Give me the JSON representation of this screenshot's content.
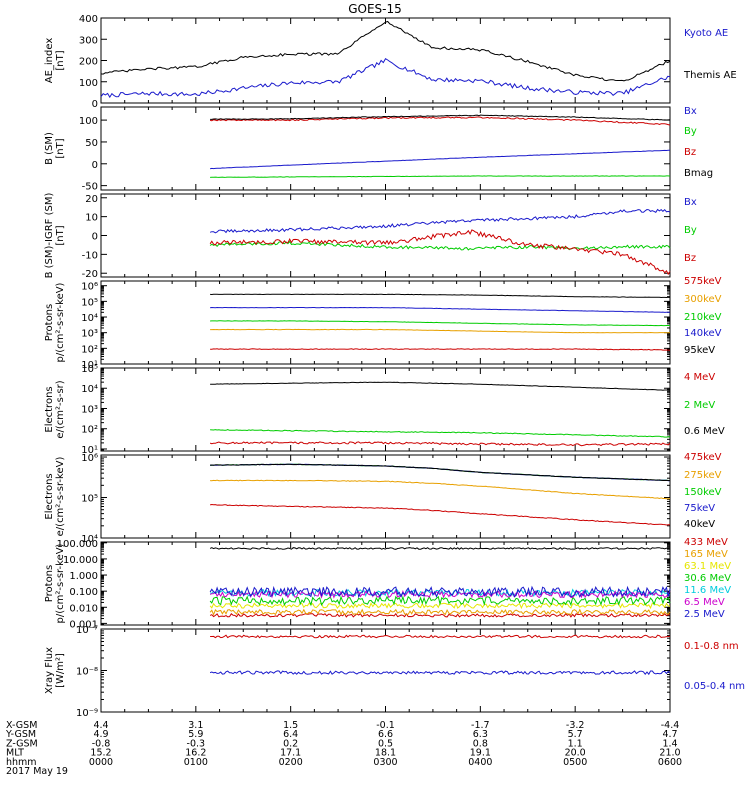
{
  "title": "GOES-15",
  "footer": {
    "rows": [
      {
        "label": "X-GSM",
        "values": [
          "4.4",
          "3.1",
          "1.5",
          "-0.1",
          "-1.7",
          "-3.2",
          "-4.4"
        ]
      },
      {
        "label": "Y-GSM",
        "values": [
          "4.9",
          "5.9",
          "6.4",
          "6.6",
          "6.3",
          "5.7",
          "4.7"
        ]
      },
      {
        "label": "Z-GSM",
        "values": [
          "-0.8",
          "-0.3",
          "0.2",
          "0.5",
          "0.8",
          "1.1",
          "1.4"
        ]
      },
      {
        "label": "MLT",
        "values": [
          "15.2",
          "16.2",
          "17.1",
          "18.1",
          "19.1",
          "20.0",
          "21.0"
        ]
      },
      {
        "label": "hhmm",
        "values": [
          "0000",
          "0100",
          "0200",
          "0300",
          "0400",
          "0500",
          "0600"
        ]
      }
    ],
    "date": "2017 May 19"
  },
  "chart_data": [
    {
      "type": "line",
      "ylabel": "AE_index [nT]",
      "ylim": [
        0,
        400
      ],
      "yscale": "linear",
      "yticks": [
        "0",
        "100",
        "200",
        "300",
        "400"
      ],
      "x_hours": [
        0,
        0.5,
        1,
        1.5,
        2,
        2.5,
        3,
        3.5,
        4,
        4.5,
        5,
        5.5,
        6
      ],
      "series": [
        {
          "name": "Kyoto AE",
          "color": "#1a1acc",
          "values": [
            35,
            45,
            40,
            70,
            95,
            100,
            200,
            110,
            105,
            70,
            50,
            45,
            125
          ],
          "noise": 10
        },
        {
          "name": "Themis AE",
          "color": "#000000",
          "values": [
            140,
            160,
            170,
            215,
            230,
            230,
            385,
            260,
            250,
            195,
            130,
            100,
            200
          ],
          "noise": 6
        }
      ]
    },
    {
      "type": "line",
      "ylabel": "B (SM) [nT]",
      "ylim": [
        -60,
        130
      ],
      "yscale": "linear",
      "yticks": [
        "-50",
        "0",
        "50",
        "100"
      ],
      "x_hours": [
        1.15,
        2,
        3,
        4,
        5,
        6
      ],
      "series": [
        {
          "name": "Bx",
          "color": "#1a1acc",
          "values": [
            -11,
            -3,
            6,
            15,
            23,
            31
          ],
          "noise": 0.4
        },
        {
          "name": "By",
          "color": "#00cc00",
          "values": [
            -31,
            -30,
            -29,
            -28,
            -28,
            -28
          ],
          "noise": 0.4
        },
        {
          "name": "Bz",
          "color": "#cc0000",
          "values": [
            100,
            100,
            105,
            106,
            100,
            90
          ],
          "noise": 1.5
        },
        {
          "name": "Bmag",
          "color": "#000000",
          "values": [
            102,
            103,
            108,
            111,
            107,
            100
          ],
          "noise": 0.8
        }
      ]
    },
    {
      "type": "line",
      "ylabel": "B (SM)-IGRF (SM) [nT]",
      "ylim": [
        -22,
        22
      ],
      "yscale": "linear",
      "yticks": [
        "-20",
        "-10",
        "0",
        "10",
        "20"
      ],
      "x_hours": [
        1.15,
        2,
        3,
        3.9,
        4.5,
        5,
        5.5,
        6
      ],
      "series": [
        {
          "name": "Bx",
          "color": "#1a1acc",
          "values": [
            2,
            3,
            5,
            8,
            9,
            10,
            13,
            13
          ],
          "noise": 0.8
        },
        {
          "name": "By",
          "color": "#00cc00",
          "values": [
            -5,
            -4,
            -6,
            -7,
            -6,
            -7,
            -6,
            -6
          ],
          "noise": 0.8
        },
        {
          "name": "Bz",
          "color": "#cc0000",
          "values": [
            -4,
            -3,
            -4,
            2,
            -5,
            -7,
            -10,
            -20
          ],
          "noise": 1.2
        }
      ]
    },
    {
      "type": "line",
      "ylabel": "Protons p/(cm²-s-sr-keV)",
      "ylim_log": [
        1,
        6.3
      ],
      "yscale": "log",
      "yticks": [
        "10¹",
        "10²",
        "10³",
        "10⁴",
        "10⁵",
        "10⁶"
      ],
      "x_hours": [
        1.15,
        2,
        3,
        4,
        5,
        6
      ],
      "series": [
        {
          "name": "575keV",
          "color": "#cc0000",
          "values": [
            1.95,
            1.95,
            1.95,
            1.95,
            1.95,
            1.9
          ],
          "noise": 0.02
        },
        {
          "name": "300keV",
          "color": "#e8a000",
          "values": [
            3.2,
            3.2,
            3.2,
            3.1,
            3.0,
            3.0
          ],
          "noise": 0.01
        },
        {
          "name": "210keV",
          "color": "#00cc00",
          "values": [
            3.75,
            3.75,
            3.7,
            3.6,
            3.5,
            3.45
          ],
          "noise": 0.01
        },
        {
          "name": "140keV",
          "color": "#1a1acc",
          "values": [
            4.6,
            4.6,
            4.6,
            4.5,
            4.4,
            4.3
          ],
          "noise": 0.01
        },
        {
          "name": "95keV",
          "color": "#000000",
          "values": [
            5.45,
            5.45,
            5.45,
            5.4,
            5.3,
            5.25
          ],
          "noise": 0.01
        }
      ]
    },
    {
      "type": "line",
      "ylabel": "Electrons e/(cm²-s-sr)",
      "ylim_log": [
        0.9,
        5.0
      ],
      "yscale": "log",
      "yticks": [
        "10¹",
        "10²",
        "10³",
        "10⁴",
        "10⁵"
      ],
      "x_hours": [
        1.15,
        2,
        3,
        4,
        5,
        6
      ],
      "series": [
        {
          "name": "4 MeV",
          "color": "#cc0000",
          "values": [
            1.3,
            1.3,
            1.3,
            1.25,
            1.2,
            1.25
          ],
          "noise": 0.05
        },
        {
          "name": "2 MeV",
          "color": "#00cc00",
          "values": [
            1.95,
            1.9,
            1.85,
            1.8,
            1.7,
            1.6
          ],
          "noise": 0.02
        },
        {
          "name": "0.6 MeV",
          "color": "#000000",
          "values": [
            4.2,
            4.25,
            4.3,
            4.2,
            4.05,
            3.9
          ],
          "noise": 0.01
        }
      ]
    },
    {
      "type": "line",
      "ylabel": "Electrons e/(cm²-s-sr-keV)",
      "ylim_log": [
        4.0,
        6.05
      ],
      "yscale": "log",
      "yticks": [
        "10⁴",
        "10⁵",
        "10⁶"
      ],
      "x_hours": [
        1.15,
        2,
        3,
        3.5,
        4,
        5,
        6
      ],
      "series": [
        {
          "name": "475keV",
          "color": "#cc0000",
          "values": [
            4.82,
            4.78,
            4.74,
            4.68,
            4.6,
            4.45,
            4.32
          ],
          "noise": 0.01
        },
        {
          "name": "275keV",
          "color": "#e8a000",
          "values": [
            5.42,
            5.42,
            5.4,
            5.35,
            5.28,
            5.1,
            4.97
          ],
          "noise": 0.008
        },
        {
          "name": "150keV",
          "color": "#00cc00",
          "values": [
            5.8,
            5.82,
            5.78,
            5.72,
            5.62,
            5.5,
            5.42
          ],
          "noise": 0.006
        },
        {
          "name": "75keV",
          "color": "#1a1acc",
          "values": [
            5.8,
            5.82,
            5.78,
            5.72,
            5.62,
            5.5,
            5.42
          ],
          "noise": 0.006
        },
        {
          "name": "40keV",
          "color": "#000000",
          "values": [
            5.8,
            5.82,
            5.78,
            5.72,
            5.62,
            5.5,
            5.42
          ],
          "noise": 0.006
        }
      ]
    },
    {
      "type": "line",
      "ylabel": "Protons p/(cm²-s-sr-keV)",
      "ylim_log": [
        -3.1,
        2.05
      ],
      "yscale": "log",
      "yticks": [
        "0.001",
        "0.010",
        "0.100",
        "1.000",
        "10.000",
        "100.000"
      ],
      "x_hours": [
        1.15,
        6
      ],
      "series": [
        {
          "name": "433 MeV",
          "color": "#cc0000",
          "values": [
            -2.5,
            -2.5
          ],
          "noise": 0.1
        },
        {
          "name": "165 MeV",
          "color": "#e8a000",
          "values": [
            -2.3,
            -2.3
          ],
          "noise": 0.15
        },
        {
          "name": "63.1 MeV",
          "color": "#e6e600",
          "values": [
            -1.9,
            -1.9
          ],
          "noise": 0.15
        },
        {
          "name": "30.6 MeV",
          "color": "#00cc00",
          "values": [
            -1.6,
            -1.6
          ],
          "noise": 0.25
        },
        {
          "name": "11.6 MeV",
          "color": "#00ccdd",
          "values": [
            -1.1,
            -1.1
          ],
          "noise": 0.2
        },
        {
          "name": "6.5 MeV",
          "color": "#cc00cc",
          "values": [
            -1.2,
            -1.2
          ],
          "noise": 0.2
        },
        {
          "name": "2.5 MeV",
          "color": "#1a1acc",
          "values": [
            -1.05,
            -1.05
          ],
          "noise": 0.3
        },
        {
          "color": "#000000",
          "values": [
            1.65,
            1.65
          ],
          "noise": 0.05
        }
      ]
    },
    {
      "type": "line",
      "ylabel": "Xray Flux [W/m²]",
      "ylim_log": [
        -9,
        -7
      ],
      "yscale": "log",
      "yticks": [
        "10⁻⁹",
        "10⁻⁸",
        "10⁻⁷"
      ],
      "x_hours": [
        1.15,
        6
      ],
      "series": [
        {
          "name": "0.1-0.8 nm",
          "color": "#cc0000",
          "values": [
            -7.18,
            -7.18
          ],
          "noise": 0.03
        },
        {
          "name": "0.05-0.4 nm",
          "color": "#1a1acc",
          "values": [
            -8.05,
            -8.05
          ],
          "noise": 0.04
        }
      ]
    }
  ]
}
